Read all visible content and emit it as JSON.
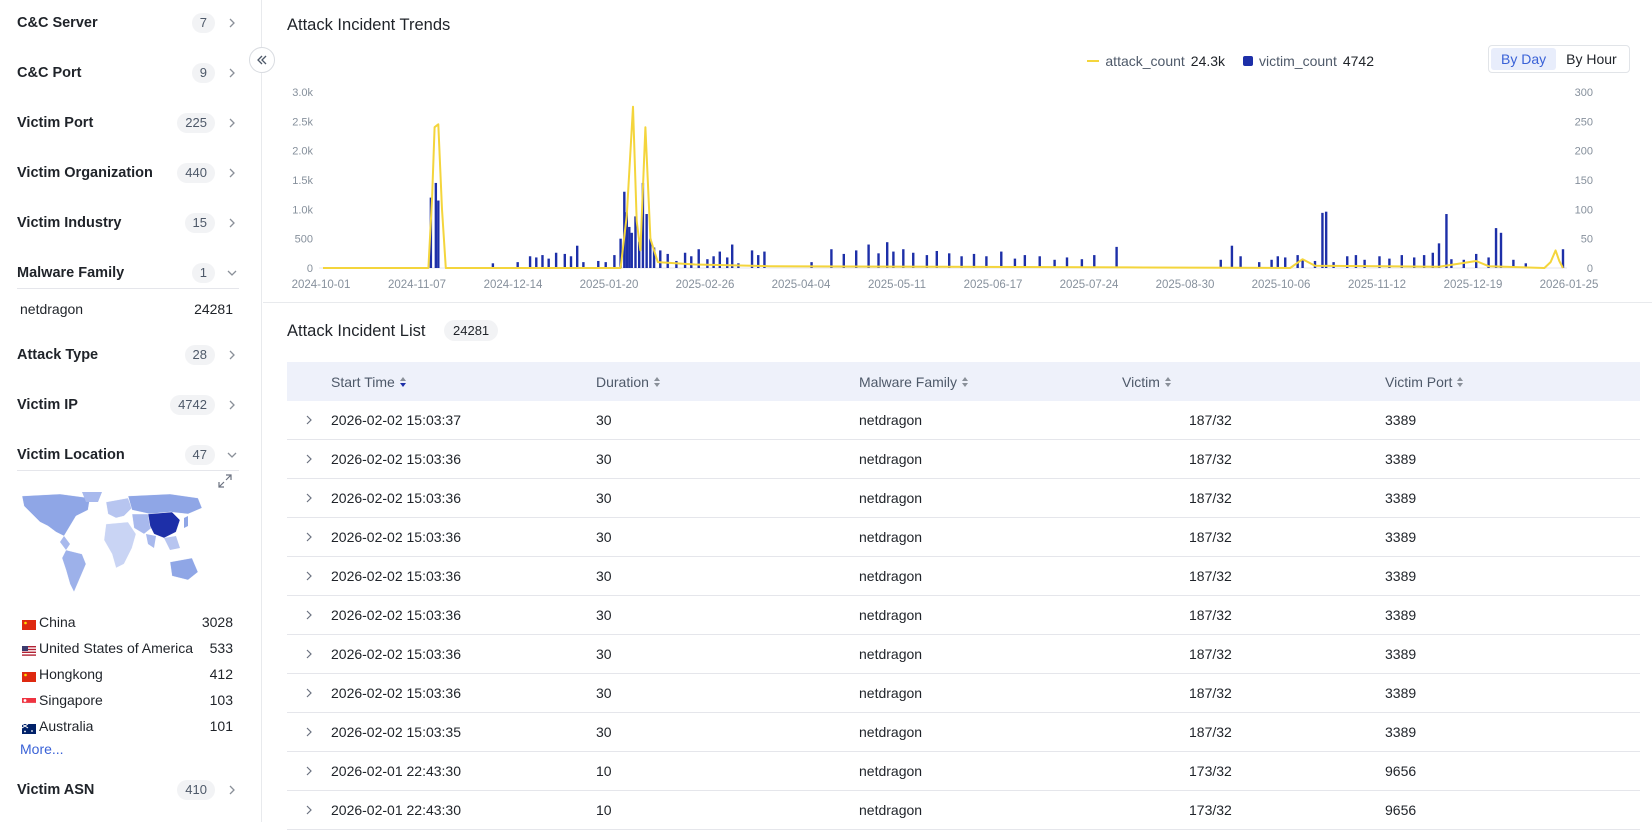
{
  "sidebar": {
    "facets": [
      {
        "label": "C&C Server",
        "count": "7",
        "state": "collapsed"
      },
      {
        "label": "C&C Port",
        "count": "9",
        "state": "collapsed"
      },
      {
        "label": "Victim Port",
        "count": "225",
        "state": "collapsed"
      },
      {
        "label": "Victim Organization",
        "count": "440",
        "state": "collapsed"
      },
      {
        "label": "Victim Industry",
        "count": "15",
        "state": "collapsed"
      },
      {
        "label": "Malware Family",
        "count": "1",
        "state": "expanded"
      },
      {
        "label": "Attack Type",
        "count": "28",
        "state": "collapsed"
      },
      {
        "label": "Victim IP",
        "count": "4742",
        "state": "collapsed"
      },
      {
        "label": "Victim Location",
        "count": "47",
        "state": "expanded"
      },
      {
        "label": "Victim ASN",
        "count": "410",
        "state": "collapsed"
      }
    ],
    "malware_family_values": [
      {
        "name": "netdragon",
        "count": "24281"
      }
    ],
    "locations": [
      {
        "flag": "cn-flag",
        "name": "China",
        "count": "3028"
      },
      {
        "flag": "us-flag",
        "name": "United States of America",
        "count": "533"
      },
      {
        "flag": "hk-flag",
        "name": "Hongkong",
        "count": "412"
      },
      {
        "flag": "sg-flag",
        "name": "Singapore",
        "count": "103"
      },
      {
        "flag": "au-flag",
        "name": "Australia",
        "count": "101"
      }
    ],
    "more_label": "More..."
  },
  "trends": {
    "title": "Attack Incident Trends",
    "legend": [
      {
        "name": "attack_count",
        "value": "24.3k",
        "color": "#f4d53c"
      },
      {
        "name": "victim_count",
        "value": "4742",
        "color": "#1d2fa8"
      }
    ],
    "toggle": {
      "options": [
        "By Day",
        "By Hour"
      ],
      "active": "By Day"
    }
  },
  "chart_data": {
    "type": "line",
    "x_tick_labels": [
      "2024-10-01",
      "2024-11-07",
      "2024-12-14",
      "2025-01-20",
      "2025-02-26",
      "2025-04-04",
      "2025-05-11",
      "2025-06-17",
      "2025-07-24",
      "2025-08-30",
      "2025-10-06",
      "2025-11-12",
      "2025-12-19",
      "2026-01-25"
    ],
    "y_left_ticks": [
      "0",
      "500",
      "1.0k",
      "1.5k",
      "2.0k",
      "2.5k",
      "3.0k"
    ],
    "y_right_ticks": [
      "0",
      "50",
      "100",
      "150",
      "200",
      "250",
      "300"
    ],
    "ylim_left": [
      0,
      3000
    ],
    "ylim_right": [
      0,
      300
    ],
    "series": [
      {
        "name": "attack_count",
        "kind": "line",
        "axis": "left",
        "color": "#f4d53c",
        "points": [
          [
            0.0,
            0
          ],
          [
            0.085,
            0
          ],
          [
            0.088,
            1200
          ],
          [
            0.09,
            2400
          ],
          [
            0.093,
            2450
          ],
          [
            0.096,
            1000
          ],
          [
            0.099,
            0
          ],
          [
            0.24,
            0
          ],
          [
            0.245,
            900
          ],
          [
            0.25,
            2750
          ],
          [
            0.253,
            800
          ],
          [
            0.256,
            300
          ],
          [
            0.26,
            2400
          ],
          [
            0.264,
            500
          ],
          [
            0.27,
            100
          ],
          [
            0.3,
            60
          ],
          [
            0.36,
            30
          ],
          [
            0.5,
            20
          ],
          [
            0.65,
            10
          ],
          [
            0.78,
            0
          ],
          [
            0.79,
            150
          ],
          [
            0.8,
            40
          ],
          [
            0.9,
            20
          ],
          [
            0.93,
            120
          ],
          [
            0.94,
            30
          ],
          [
            0.985,
            0
          ],
          [
            0.99,
            100
          ],
          [
            0.994,
            300
          ],
          [
            0.997,
            120
          ],
          [
            1.0,
            0
          ]
        ]
      },
      {
        "name": "victim_count",
        "kind": "bar",
        "axis": "right",
        "color": "#1d2fa8",
        "bars": [
          [
            0.087,
            120
          ],
          [
            0.091,
            145
          ],
          [
            0.093,
            115
          ],
          [
            0.137,
            8
          ],
          [
            0.157,
            10
          ],
          [
            0.167,
            20
          ],
          [
            0.172,
            18
          ],
          [
            0.177,
            22
          ],
          [
            0.182,
            16
          ],
          [
            0.188,
            26
          ],
          [
            0.195,
            24
          ],
          [
            0.2,
            20
          ],
          [
            0.205,
            38
          ],
          [
            0.21,
            10
          ],
          [
            0.222,
            12
          ],
          [
            0.228,
            10
          ],
          [
            0.235,
            22
          ],
          [
            0.24,
            50
          ],
          [
            0.243,
            130
          ],
          [
            0.245,
            95
          ],
          [
            0.247,
            70
          ],
          [
            0.249,
            60
          ],
          [
            0.252,
            88
          ],
          [
            0.255,
            45
          ],
          [
            0.258,
            145
          ],
          [
            0.261,
            92
          ],
          [
            0.264,
            50
          ],
          [
            0.267,
            35
          ],
          [
            0.272,
            30
          ],
          [
            0.278,
            24
          ],
          [
            0.285,
            12
          ],
          [
            0.292,
            26
          ],
          [
            0.297,
            20
          ],
          [
            0.303,
            32
          ],
          [
            0.31,
            15
          ],
          [
            0.315,
            20
          ],
          [
            0.32,
            28
          ],
          [
            0.326,
            18
          ],
          [
            0.335,
            8
          ],
          [
            0.346,
            30
          ],
          [
            0.351,
            22
          ],
          [
            0.356,
            28
          ],
          [
            0.33,
            40
          ],
          [
            0.394,
            10
          ],
          [
            0.41,
            32
          ],
          [
            0.42,
            24
          ],
          [
            0.43,
            30
          ],
          [
            0.44,
            40
          ],
          [
            0.448,
            25
          ],
          [
            0.455,
            44
          ],
          [
            0.46,
            28
          ],
          [
            0.468,
            32
          ],
          [
            0.476,
            26
          ],
          [
            0.487,
            22
          ],
          [
            0.495,
            29
          ],
          [
            0.505,
            25
          ],
          [
            0.515,
            20
          ],
          [
            0.525,
            24
          ],
          [
            0.535,
            20
          ],
          [
            0.547,
            28
          ],
          [
            0.558,
            16
          ],
          [
            0.566,
            22
          ],
          [
            0.578,
            20
          ],
          [
            0.59,
            14
          ],
          [
            0.6,
            18
          ],
          [
            0.612,
            15
          ],
          [
            0.622,
            22
          ],
          [
            0.64,
            36
          ],
          [
            0.724,
            14
          ],
          [
            0.733,
            38
          ],
          [
            0.74,
            20
          ],
          [
            0.755,
            10
          ],
          [
            0.765,
            14
          ],
          [
            0.77,
            20
          ],
          [
            0.776,
            18
          ],
          [
            0.786,
            22
          ],
          [
            0.79,
            14
          ],
          [
            0.8,
            12
          ],
          [
            0.806,
            94
          ],
          [
            0.809,
            96
          ],
          [
            0.815,
            10
          ],
          [
            0.826,
            20
          ],
          [
            0.833,
            22
          ],
          [
            0.84,
            14
          ],
          [
            0.852,
            20
          ],
          [
            0.86,
            16
          ],
          [
            0.87,
            22
          ],
          [
            0.88,
            18
          ],
          [
            0.888,
            22
          ],
          [
            0.895,
            26
          ],
          [
            0.9,
            42
          ],
          [
            0.906,
            92
          ],
          [
            0.91,
            15
          ],
          [
            0.92,
            14
          ],
          [
            0.93,
            24
          ],
          [
            0.94,
            18
          ],
          [
            0.946,
            68
          ],
          [
            0.95,
            60
          ],
          [
            0.96,
            14
          ],
          [
            0.97,
            8
          ],
          [
            1.0,
            32
          ]
        ]
      }
    ]
  },
  "list": {
    "title": "Attack Incident List",
    "total": "24281",
    "columns": [
      "Start Time",
      "Duration",
      "Malware Family",
      "Victim",
      "Victim Port"
    ],
    "rows": [
      {
        "start_time": "2026-02-02 15:03:37",
        "duration": "30",
        "malware_family": "netdragon",
        "victim": "187/32",
        "victim_port": "3389"
      },
      {
        "start_time": "2026-02-02 15:03:36",
        "duration": "30",
        "malware_family": "netdragon",
        "victim": "187/32",
        "victim_port": "3389"
      },
      {
        "start_time": "2026-02-02 15:03:36",
        "duration": "30",
        "malware_family": "netdragon",
        "victim": "187/32",
        "victim_port": "3389"
      },
      {
        "start_time": "2026-02-02 15:03:36",
        "duration": "30",
        "malware_family": "netdragon",
        "victim": "187/32",
        "victim_port": "3389"
      },
      {
        "start_time": "2026-02-02 15:03:36",
        "duration": "30",
        "malware_family": "netdragon",
        "victim": "187/32",
        "victim_port": "3389"
      },
      {
        "start_time": "2026-02-02 15:03:36",
        "duration": "30",
        "malware_family": "netdragon",
        "victim": "187/32",
        "victim_port": "3389"
      },
      {
        "start_time": "2026-02-02 15:03:36",
        "duration": "30",
        "malware_family": "netdragon",
        "victim": "187/32",
        "victim_port": "3389"
      },
      {
        "start_time": "2026-02-02 15:03:36",
        "duration": "30",
        "malware_family": "netdragon",
        "victim": "187/32",
        "victim_port": "3389"
      },
      {
        "start_time": "2026-02-02 15:03:35",
        "duration": "30",
        "malware_family": "netdragon",
        "victim": "187/32",
        "victim_port": "3389"
      },
      {
        "start_time": "2026-02-01 22:43:30",
        "duration": "10",
        "malware_family": "netdragon",
        "victim": "173/32",
        "victim_port": "9656"
      },
      {
        "start_time": "2026-02-01 22:43:30",
        "duration": "10",
        "malware_family": "netdragon",
        "victim": "173/32",
        "victim_port": "9656"
      }
    ]
  }
}
